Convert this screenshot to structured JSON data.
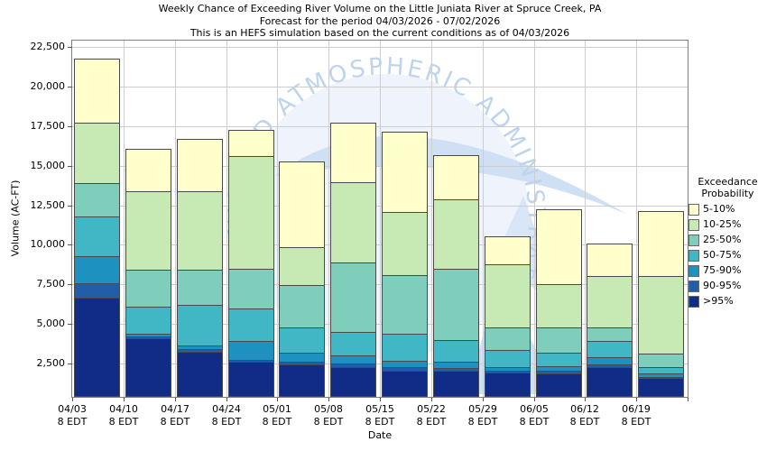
{
  "chart_data": {
    "type": "bar",
    "stacked": true,
    "titles": [
      "Weekly Chance of Exceeding River Volume on the Little Juniata River at Spruce Creek, PA",
      "Forecast for the period 04/03/2026 - 07/02/2026",
      "This is an HEFS simulation based on the current conditions as of 04/03/2026"
    ],
    "xlabel": "Date",
    "ylabel": "Volume (AC-FT)",
    "ylim": [
      380,
      22920
    ],
    "grid": true,
    "yticks": [
      2500,
      5000,
      7500,
      10000,
      12500,
      15000,
      17500,
      20000,
      22500
    ],
    "ytick_labels": [
      "2,500",
      "5,000",
      "7,500",
      "10,000",
      "12,500",
      "15,000",
      "17,500",
      "20,000",
      "22,500"
    ],
    "categories": [
      {
        "date": "04/03",
        "time": "8 EDT"
      },
      {
        "date": "04/10",
        "time": "8 EDT"
      },
      {
        "date": "04/17",
        "time": "8 EDT"
      },
      {
        "date": "04/24",
        "time": "8 EDT"
      },
      {
        "date": "05/01",
        "time": "8 EDT"
      },
      {
        "date": "05/08",
        "time": "8 EDT"
      },
      {
        "date": "05/15",
        "time": "8 EDT"
      },
      {
        "date": "05/22",
        "time": "8 EDT"
      },
      {
        "date": "05/29",
        "time": "8 EDT"
      },
      {
        "date": "06/05",
        "time": "8 EDT"
      },
      {
        "date": "06/12",
        "time": "8 EDT"
      },
      {
        "date": "06/19",
        "time": "8 EDT"
      }
    ],
    "base": 380,
    "series_note": "cumulative_tops are stacked upper boundaries in AC-FT, listed bottom series first",
    "series": [
      {
        "name": ">95%",
        "color": "#112c87",
        "cumulative_tops": [
          6650,
          4080,
          3250,
          2600,
          2460,
          2260,
          2050,
          2030,
          1900,
          1880,
          2250,
          1550
        ]
      },
      {
        "name": "90-95%",
        "color": "#225ea8",
        "cumulative_tops": [
          7550,
          4200,
          3400,
          2700,
          2600,
          2490,
          2250,
          2200,
          2050,
          2050,
          2450,
          1650
        ]
      },
      {
        "name": "75-90%",
        "color": "#1d91c0",
        "cumulative_tops": [
          9300,
          4400,
          3650,
          3900,
          3160,
          3030,
          2650,
          2600,
          2280,
          2300,
          2900,
          1850
        ]
      },
      {
        "name": "50-75%",
        "color": "#41b6c4",
        "cumulative_tops": [
          11800,
          6100,
          6200,
          6000,
          4780,
          4500,
          4400,
          4000,
          3350,
          3200,
          3900,
          2260
        ]
      },
      {
        "name": "25-50%",
        "color": "#7fcdbb",
        "cumulative_tops": [
          13900,
          8450,
          8450,
          8500,
          7450,
          8900,
          8100,
          8500,
          4750,
          4800,
          4750,
          3120
        ]
      },
      {
        "name": "10-25%",
        "color": "#c7e9b4",
        "cumulative_tops": [
          17700,
          13400,
          13400,
          15600,
          9850,
          13950,
          12050,
          12850,
          8750,
          7500,
          8000,
          8000
        ]
      },
      {
        "name": "5-10%",
        "color": "#ffffcc",
        "cumulative_tops": [
          21800,
          16100,
          16700,
          17250,
          15300,
          17700,
          17150,
          15650,
          10550,
          12250,
          10100,
          12150
        ]
      }
    ],
    "legend_title": [
      "Exceedance",
      "Probability"
    ],
    "legend_position": "right"
  },
  "watermark": {
    "arc_text": "EANIC AND ATMOSPHERIC ADMINISTRATION",
    "text_color": "#bdd3ee",
    "shape_color": "#cfe0f5"
  }
}
